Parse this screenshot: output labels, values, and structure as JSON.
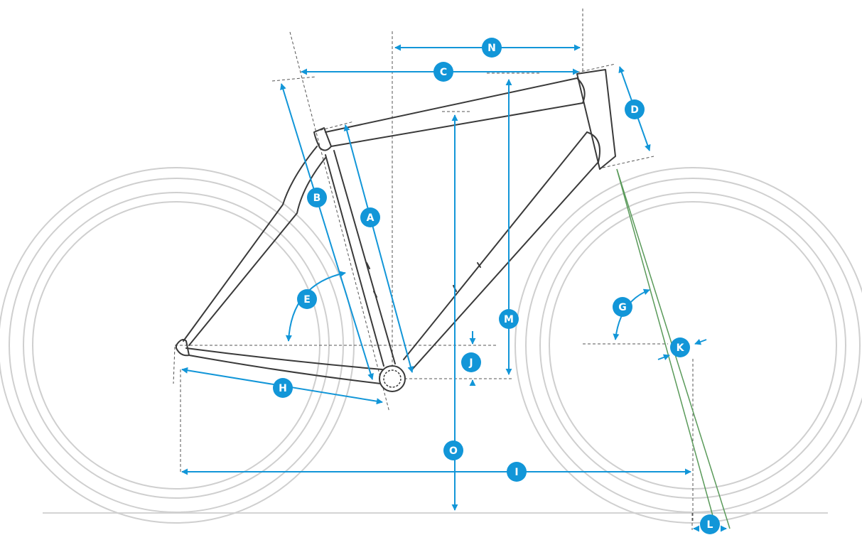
{
  "colors": {
    "accent": "#1296d8",
    "frame": "#3a3a3a",
    "wheel": "#cfcfcf",
    "ground": "#d4d4d4",
    "dashed": "#555555",
    "trail_line": "#5a9a5a",
    "badge_text": "#ffffff"
  },
  "labels": {
    "A": "A",
    "B": "B",
    "C": "C",
    "D": "D",
    "E": "E",
    "G": "G",
    "H": "H",
    "I": "I",
    "J": "J",
    "K": "K",
    "L": "L",
    "M": "M",
    "N": "N",
    "O": "O"
  }
}
